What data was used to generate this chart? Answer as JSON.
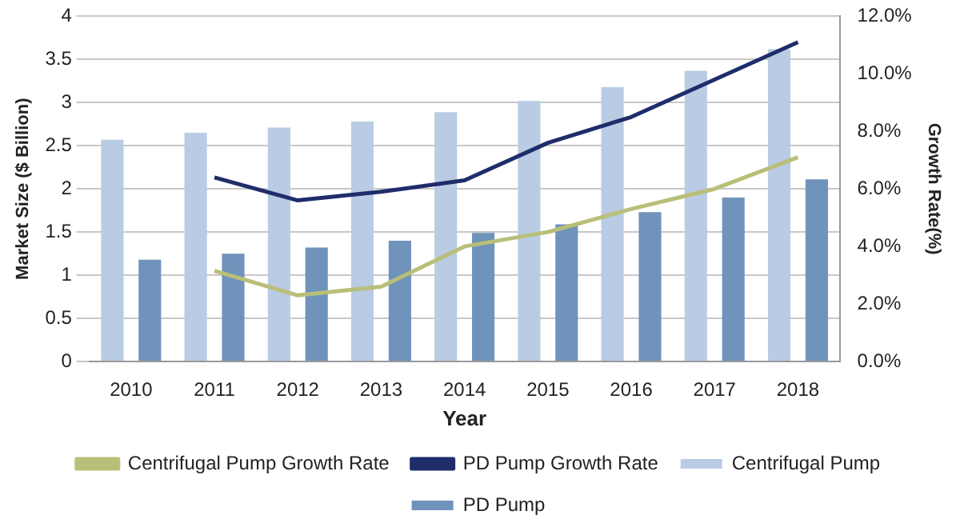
{
  "chart_data": {
    "type": "bar",
    "xlabel": "Year",
    "ylabel": "Market Size ($ Billion)",
    "y2label": "Growth Rate(%)",
    "categories": [
      "2010",
      "2011",
      "2012",
      "2013",
      "2014",
      "2015",
      "2016",
      "2017",
      "2018"
    ],
    "series": [
      {
        "name": "Centrifugal Pump",
        "color": "#b9cce4",
        "values": [
          2.57,
          2.65,
          2.71,
          2.78,
          2.89,
          3.02,
          3.18,
          3.37,
          3.62
        ]
      },
      {
        "name": "PD Pump",
        "color": "#7093bb",
        "values": [
          1.18,
          1.25,
          1.32,
          1.4,
          1.49,
          1.59,
          1.73,
          1.9,
          2.11
        ]
      },
      {
        "name": "Centrifugal Pump Growth Rate",
        "type": "line",
        "axis": "y2",
        "color": "#b9bf78",
        "values": [
          null,
          3.15,
          2.3,
          2.6,
          4.0,
          4.5,
          5.3,
          6.0,
          7.1
        ]
      },
      {
        "name": "PD Pump Growth Rate",
        "type": "line",
        "axis": "y2",
        "color": "#1f2d6b",
        "values": [
          null,
          6.4,
          5.6,
          5.9,
          6.3,
          7.6,
          8.5,
          9.8,
          11.1
        ]
      }
    ],
    "ylim": [
      0,
      4
    ],
    "yticks": [
      0,
      0.5,
      1,
      1.5,
      2,
      2.5,
      3,
      3.5,
      4
    ],
    "y2lim": [
      0,
      12
    ],
    "y2ticks": [
      {
        "value": 0,
        "label": "0.0%"
      },
      {
        "value": 2,
        "label": "2.0%"
      },
      {
        "value": 4,
        "label": "4.0%"
      },
      {
        "value": 6,
        "label": "6.0%"
      },
      {
        "value": 8,
        "label": "8.0%"
      },
      {
        "value": 10,
        "label": "10.0%"
      },
      {
        "value": 12,
        "label": "12.0%"
      }
    ],
    "grid": "y",
    "legend": "bottom",
    "marker": "none"
  }
}
